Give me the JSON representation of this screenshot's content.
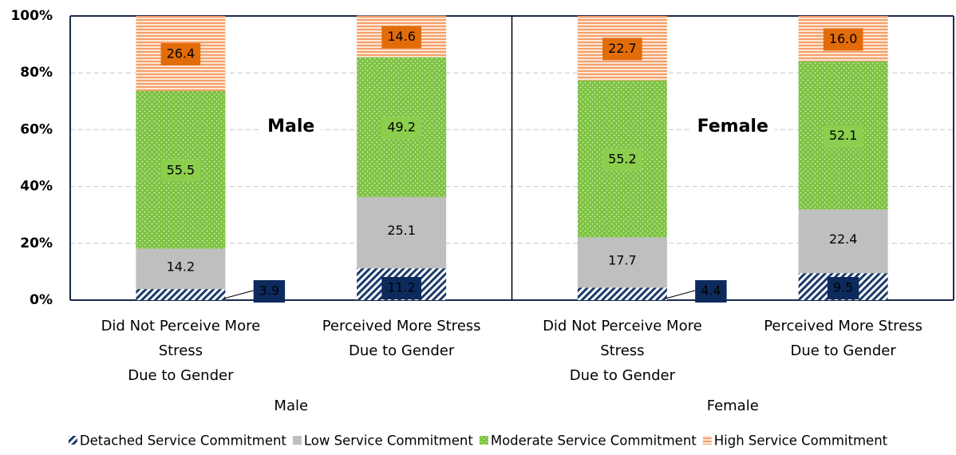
{
  "chart_data": {
    "type": "stacked_bar",
    "categories": [
      [
        "Did Not Perceive More",
        "Stress",
        "Due to Gender"
      ],
      [
        "Perceived More Stress",
        "Due to Gender"
      ],
      [
        "Did Not Perceive More",
        "Stress",
        "Due to Gender"
      ],
      [
        "Perceived More Stress",
        "Due to Gender"
      ]
    ],
    "groups": [
      "Male",
      "Female"
    ],
    "annotations": [
      "Male",
      "Female"
    ],
    "series": [
      {
        "name": "Detached Service Commitment",
        "color": "#1b3a6b",
        "pattern": "diagonal",
        "values": [
          3.9,
          11.2,
          4.4,
          9.5
        ]
      },
      {
        "name": "Low Service Commitment",
        "color": "#bfbfbf",
        "pattern": "solid",
        "values": [
          14.2,
          25.1,
          17.7,
          22.4
        ]
      },
      {
        "name": "Moderate Service Commitment",
        "color": "#7dc242",
        "pattern": "dots",
        "values": [
          55.5,
          49.2,
          55.2,
          52.1
        ]
      },
      {
        "name": "High Service Commitment",
        "color": "#f4a06a",
        "pattern": "horizontal",
        "values": [
          26.4,
          14.6,
          22.7,
          16.0
        ],
        "value_labels": [
          "26.4",
          "14.6",
          "22.7",
          "16.0"
        ]
      }
    ],
    "ylim": [
      0,
      100
    ],
    "yticks": [
      {
        "value": 0,
        "label": "0%"
      },
      {
        "value": 20,
        "label": "20%"
      },
      {
        "value": 40,
        "label": "40%"
      },
      {
        "value": 60,
        "label": "60%"
      },
      {
        "value": 80,
        "label": "80%"
      },
      {
        "value": 100,
        "label": "100%"
      }
    ],
    "grid": true,
    "legend": "bottom"
  }
}
